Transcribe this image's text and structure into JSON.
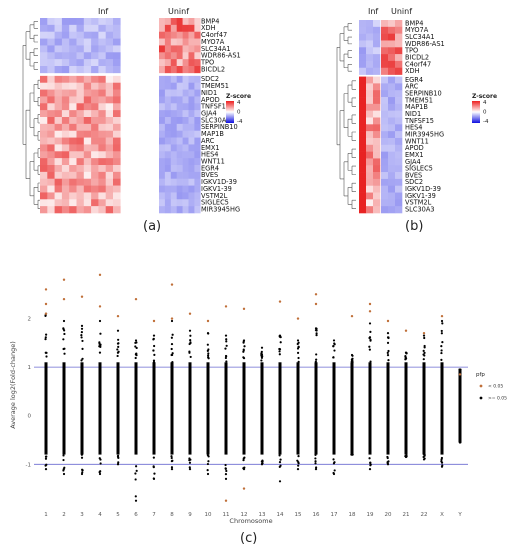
{
  "panel_labels": {
    "a": "(a)",
    "b": "(b)",
    "c": "(c)"
  },
  "chart_data": [
    {
      "type": "heatmap",
      "panel": "a",
      "groups": [
        {
          "label": "Inf",
          "columns": 11
        },
        {
          "label": "Uninf",
          "columns": 7
        }
      ],
      "rows": [
        "BMP4",
        "XDH",
        "C4orf47",
        "MYO7A",
        "SLC34A1",
        "WDR86-AS1",
        "TPO",
        "BICDL2",
        "SDC2",
        "TMEM51",
        "NID1",
        "APOD",
        "TNFSF15",
        "GJA4",
        "SLC30A3",
        "SERPINB10",
        "MAP1B",
        "ARC",
        "EMX1",
        "HES4",
        "WNT11",
        "EGR4",
        "BVES",
        "IGKV1D-39",
        "IGKV1-39",
        "VSTM2L",
        "SIGLEC5",
        "MIR3945HG"
      ],
      "row_split_after": 8,
      "legend": {
        "title": "Z-score",
        "ticks": [
          "4",
          "0",
          "-4"
        ],
        "colors": [
          "#ee2020",
          "#ffffff",
          "#1010e0"
        ]
      },
      "note": "Upper block: high in Uninf, low in Inf. Lower block: high in Inf, low in Uninf."
    },
    {
      "type": "heatmap",
      "panel": "b",
      "groups": [
        {
          "label": "Inf",
          "columns": 3
        },
        {
          "label": "Uninf",
          "columns": 3
        }
      ],
      "rows": [
        "BMP4",
        "MYO7A",
        "SLC34A1",
        "WDR86-AS1",
        "TPO",
        "BICDL2",
        "C4orf47",
        "XDH",
        "EGR4",
        "ARC",
        "SERPINB10",
        "TMEM51",
        "MAP1B",
        "NID1",
        "TNFSF15",
        "HES4",
        "MIR3945HG",
        "WNT11",
        "APOD",
        "EMX1",
        "GJA4",
        "SIGLEC5",
        "BVES",
        "SDC2",
        "IGKV1D-39",
        "IGKV1-39",
        "VSTM2L",
        "SLC30A3"
      ],
      "row_split_after": 8,
      "legend": {
        "title": "Z-score",
        "ticks": [
          "4",
          "0",
          "-4"
        ],
        "colors": [
          "#ee2020",
          "#ffffff",
          "#1010e0"
        ]
      }
    },
    {
      "type": "scatter",
      "panel": "c",
      "xlabel": "Chromosome",
      "ylabel": "Average log2(Fold-change)",
      "categories": [
        "1",
        "2",
        "3",
        "4",
        "5",
        "6",
        "7",
        "8",
        "9",
        "10",
        "11",
        "12",
        "13",
        "14",
        "15",
        "16",
        "17",
        "18",
        "19",
        "20",
        "21",
        "22",
        "X",
        "Y"
      ],
      "ylim": [
        -1.9,
        3.0
      ],
      "yticks": [
        -1,
        0,
        1,
        2
      ],
      "hlines": [
        1,
        -1
      ],
      "grid": false,
      "legend": {
        "title": "pfp",
        "position": "right",
        "items": [
          {
            "label": "< 0.05",
            "color": "#c0703a"
          },
          {
            "label": ">= 0.05",
            "color": "#000000"
          }
        ]
      },
      "series": [
        {
          "name": ">= 0.05",
          "color": "#000000",
          "ranges": [
            [
              -1.1,
              2.1
            ],
            [
              -1.2,
              1.95
            ],
            [
              -1.2,
              1.85
            ],
            [
              -1.2,
              1.95
            ],
            [
              -1.0,
              1.75
            ],
            [
              -1.75,
              1.55
            ],
            [
              -1.3,
              1.65
            ],
            [
              -1.1,
              1.95
            ],
            [
              -1.1,
              1.75
            ],
            [
              -1.2,
              1.7
            ],
            [
              -1.3,
              1.65
            ],
            [
              -1.1,
              1.55
            ],
            [
              -1.0,
              1.4
            ],
            [
              -1.35,
              1.65
            ],
            [
              -1.1,
              1.55
            ],
            [
              -1.1,
              1.8
            ],
            [
              -1.2,
              1.55
            ],
            [
              -0.8,
              1.25
            ],
            [
              -1.1,
              1.9
            ],
            [
              -1.0,
              1.7
            ],
            [
              -0.85,
              1.3
            ],
            [
              -0.9,
              1.65
            ],
            [
              -1.05,
              1.95
            ],
            [
              -0.55,
              0.95
            ]
          ]
        },
        {
          "name": "< 0.05",
          "color": "#c0703a",
          "points": [
            [
              "1",
              2.6
            ],
            [
              "1",
              2.3
            ],
            [
              "1",
              2.1
            ],
            [
              "2",
              2.8
            ],
            [
              "2",
              2.4
            ],
            [
              "3",
              2.45
            ],
            [
              "4",
              2.9
            ],
            [
              "4",
              2.25
            ],
            [
              "5",
              2.05
            ],
            [
              "6",
              2.4
            ],
            [
              "7",
              1.95
            ],
            [
              "8",
              2.7
            ],
            [
              "8",
              2.0
            ],
            [
              "9",
              2.1
            ],
            [
              "10",
              1.95
            ],
            [
              "11",
              2.25
            ],
            [
              "11",
              -1.75
            ],
            [
              "12",
              2.2
            ],
            [
              "12",
              -1.5
            ],
            [
              "14",
              2.35
            ],
            [
              "15",
              2.0
            ],
            [
              "16",
              2.5
            ],
            [
              "16",
              2.3
            ],
            [
              "18",
              2.05
            ],
            [
              "19",
              2.3
            ],
            [
              "19",
              2.15
            ],
            [
              "20",
              1.95
            ],
            [
              "21",
              1.75
            ],
            [
              "22",
              1.7
            ],
            [
              "X",
              2.05
            ],
            [
              "Y",
              0.85
            ]
          ]
        }
      ]
    }
  ]
}
